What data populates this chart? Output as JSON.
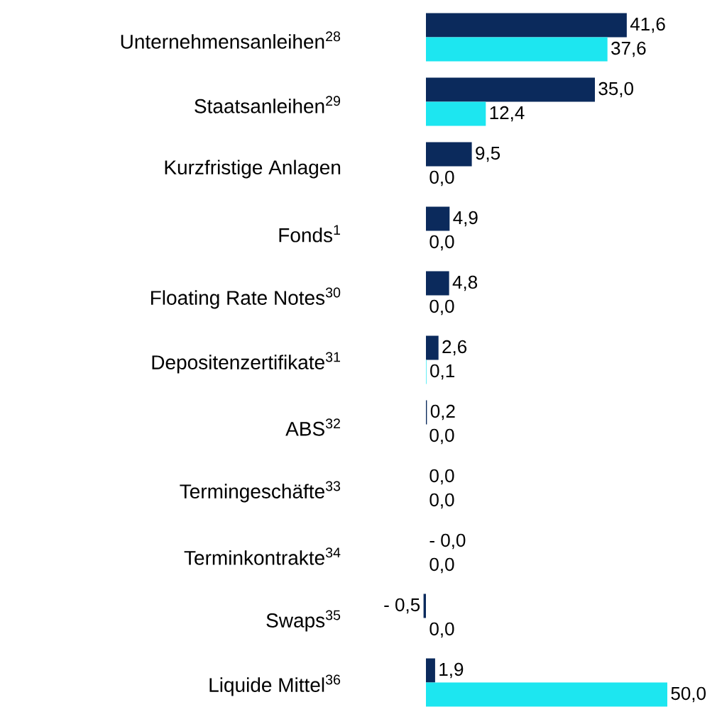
{
  "chart_data": {
    "type": "bar",
    "orientation": "horizontal",
    "tick_labels": "y",
    "categories": [
      "Unternehmensanleihen$^{28}$",
      "Staatsanleihen$^{29}$",
      "Kurzfristige Anlagen",
      "Fonds$^{1}$",
      "Floating Rate Notes$^{30}$",
      "Depositenzertifikate$^{31}$",
      "ABS$^{32}$",
      "Termingeschäfte$^{33}$",
      "Terminkontrakte$^{34}$",
      "Swaps$^{35}$",
      "Liquide Mittel$^{36}$"
    ],
    "series": [
      {
        "color": "#0b2a5c",
        "values": [
          41.6,
          35.0,
          9.5,
          4.9,
          4.8,
          2.6,
          0.2,
          0.0,
          -0.0,
          -0.5,
          1.9
        ],
        "value_labels": [
          "41,6",
          "35,0",
          "9,5",
          "4,9",
          "4,8",
          "2,6",
          "0,2",
          "0,0",
          "- 0,0",
          "- 0,5",
          "1,9"
        ]
      },
      {
        "color": "#1de6f0",
        "values": [
          37.6,
          12.4,
          0.0,
          0.0,
          0.0,
          0.1,
          0.0,
          0.0,
          0.0,
          0.0,
          50.0
        ],
        "value_labels": [
          "37,6",
          "12,4",
          "0,0",
          "0,0",
          "0,0",
          "0,1",
          "0,0",
          "0,0",
          "0,0",
          "0,0",
          "50,0"
        ]
      }
    ]
  }
}
